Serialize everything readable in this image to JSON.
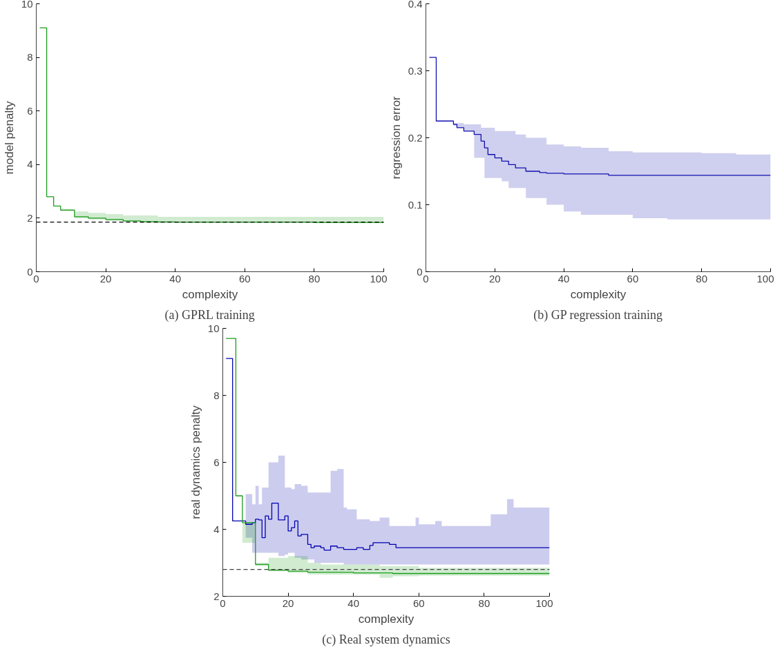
{
  "chart_data": [
    {
      "type": "step",
      "xlabel": "complexity",
      "ylabel": "model penalty",
      "annotations": [
        "(a) GPRL training"
      ],
      "xlim": [
        0,
        100
      ],
      "ylim": [
        0,
        10
      ],
      "xticks": [
        0,
        20,
        40,
        60,
        80,
        100
      ],
      "yticks": [
        0,
        2,
        4,
        6,
        8,
        10
      ],
      "grid": false,
      "series": [
        {
          "color": "#1a9c1a",
          "x": [
            1,
            3,
            5,
            7,
            11,
            15,
            20,
            25,
            30,
            35,
            40,
            50,
            60,
            70,
            80,
            90,
            100
          ],
          "values": [
            9.1,
            2.8,
            2.45,
            2.3,
            2.05,
            2.0,
            1.95,
            1.9,
            1.87,
            1.86,
            1.85,
            1.85,
            1.85,
            1.85,
            1.84,
            1.84,
            1.84
          ],
          "upper": [
            9.1,
            2.8,
            2.45,
            2.3,
            2.25,
            2.2,
            2.15,
            2.1,
            2.1,
            2.05,
            2.05,
            2.05,
            2.05,
            2.05,
            2.05,
            2.05,
            2.05
          ],
          "lower": [
            9.1,
            2.8,
            2.45,
            2.3,
            2.0,
            1.95,
            1.9,
            1.85,
            1.82,
            1.82,
            1.82,
            1.82,
            1.82,
            1.82,
            1.82,
            1.82,
            1.82
          ]
        }
      ],
      "ref_lines": [
        {
          "axis": "y",
          "value": 1.85,
          "label": null,
          "color": "#000000",
          "line_style": "dashed"
        }
      ]
    },
    {
      "type": "step",
      "xlabel": "complexity",
      "ylabel": "regression error",
      "annotations": [
        "(b) GP regression training"
      ],
      "xlim": [
        0,
        100
      ],
      "ylim": [
        0,
        0.4
      ],
      "xticks": [
        0,
        20,
        40,
        60,
        80,
        100
      ],
      "yticks": [
        0,
        0.1,
        0.2,
        0.3,
        0.4
      ],
      "grid": false,
      "series": [
        {
          "color": "#1010b0",
          "x": [
            1,
            3,
            8,
            9,
            11,
            14,
            16,
            17,
            18,
            20,
            22,
            24,
            26,
            29,
            33,
            35,
            40,
            45,
            53,
            60,
            70,
            80,
            90,
            100
          ],
          "values": [
            0.32,
            0.225,
            0.22,
            0.215,
            0.21,
            0.205,
            0.195,
            0.185,
            0.175,
            0.17,
            0.165,
            0.16,
            0.155,
            0.15,
            0.148,
            0.147,
            0.146,
            0.146,
            0.144,
            0.144,
            0.144,
            0.144,
            0.144,
            0.144
          ],
          "upper": [
            0.32,
            0.225,
            0.222,
            0.222,
            0.22,
            0.22,
            0.215,
            0.215,
            0.215,
            0.21,
            0.21,
            0.21,
            0.205,
            0.2,
            0.2,
            0.19,
            0.187,
            0.185,
            0.18,
            0.178,
            0.178,
            0.177,
            0.175,
            0.175
          ],
          "lower": [
            0.32,
            0.225,
            0.218,
            0.215,
            0.21,
            0.17,
            0.17,
            0.14,
            0.14,
            0.14,
            0.135,
            0.125,
            0.125,
            0.11,
            0.11,
            0.1,
            0.09,
            0.085,
            0.085,
            0.08,
            0.078,
            0.078,
            0.078,
            0.078
          ]
        }
      ]
    },
    {
      "type": "step",
      "xlabel": "complexity",
      "ylabel": "real dynamics penalty",
      "annotations": [
        "(c) Real system dynamics"
      ],
      "xlim": [
        0,
        100
      ],
      "ylim": [
        2,
        10
      ],
      "xticks": [
        0,
        20,
        40,
        60,
        80,
        100
      ],
      "yticks": [
        2,
        4,
        6,
        8,
        10
      ],
      "grid": false,
      "series": [
        {
          "color": "#0000b0",
          "x": [
            1,
            3,
            7,
            9,
            10,
            11,
            12,
            13,
            14,
            15,
            17,
            19,
            20,
            21,
            22,
            23,
            24,
            26,
            27,
            28,
            30,
            31,
            33,
            35,
            37,
            38,
            41,
            43,
            45,
            46,
            48,
            51,
            53,
            59,
            60,
            65,
            67,
            82,
            87,
            89,
            100
          ],
          "values": [
            9.1,
            4.25,
            4.15,
            4.2,
            4.3,
            4.28,
            3.75,
            4.4,
            4.3,
            4.78,
            4.28,
            4.4,
            3.95,
            4.05,
            4.25,
            3.8,
            3.85,
            3.55,
            3.45,
            3.5,
            3.45,
            3.38,
            3.5,
            3.45,
            3.4,
            3.4,
            3.45,
            3.4,
            3.52,
            3.6,
            3.6,
            3.55,
            3.45,
            3.45,
            3.45,
            3.45,
            3.45,
            3.45,
            3.45,
            3.45,
            3.45
          ],
          "upper": [
            9.1,
            4.25,
            5.05,
            4.75,
            5.3,
            4.75,
            5.25,
            5.25,
            6.0,
            6.0,
            6.2,
            5.25,
            5.25,
            5.2,
            5.35,
            5.35,
            5.3,
            5.1,
            5.1,
            5.1,
            5.1,
            5.1,
            5.75,
            5.8,
            4.65,
            4.6,
            4.3,
            4.3,
            4.25,
            4.25,
            4.35,
            4.1,
            4.1,
            4.35,
            4.15,
            4.25,
            4.1,
            4.45,
            4.9,
            4.65,
            4.65
          ],
          "lower": [
            9.1,
            4.25,
            3.75,
            3.3,
            3.3,
            3.3,
            3.3,
            3.3,
            3.3,
            3.3,
            3.2,
            3.25,
            3.3,
            3.3,
            3.15,
            3.15,
            3.1,
            3.1,
            3.1,
            3.0,
            3.0,
            3.0,
            3.0,
            3.0,
            2.95,
            2.95,
            2.95,
            2.95,
            2.95,
            2.95,
            2.95,
            2.95,
            2.95,
            2.95,
            2.95,
            2.95,
            2.95,
            2.95,
            2.95,
            2.95,
            2.95
          ]
        },
        {
          "color": "#1a9c1a",
          "x": [
            1,
            4,
            6,
            10,
            14,
            20,
            26,
            30,
            40,
            48,
            52,
            60,
            100
          ],
          "values": [
            9.7,
            5.0,
            4.2,
            2.95,
            2.78,
            2.75,
            2.72,
            2.72,
            2.7,
            2.7,
            2.68,
            2.68,
            2.68
          ],
          "upper": [
            9.7,
            5.0,
            4.2,
            3.0,
            3.15,
            3.2,
            3.0,
            2.95,
            2.95,
            2.9,
            2.9,
            2.85,
            2.85
          ],
          "lower": [
            9.7,
            5.0,
            3.6,
            2.9,
            2.75,
            2.7,
            2.65,
            2.65,
            2.65,
            2.55,
            2.6,
            2.62,
            2.62
          ]
        }
      ],
      "ref_lines": [
        {
          "axis": "y",
          "value": 2.8,
          "label": null,
          "color": "#404040",
          "line_style": "dashed"
        }
      ]
    }
  ]
}
